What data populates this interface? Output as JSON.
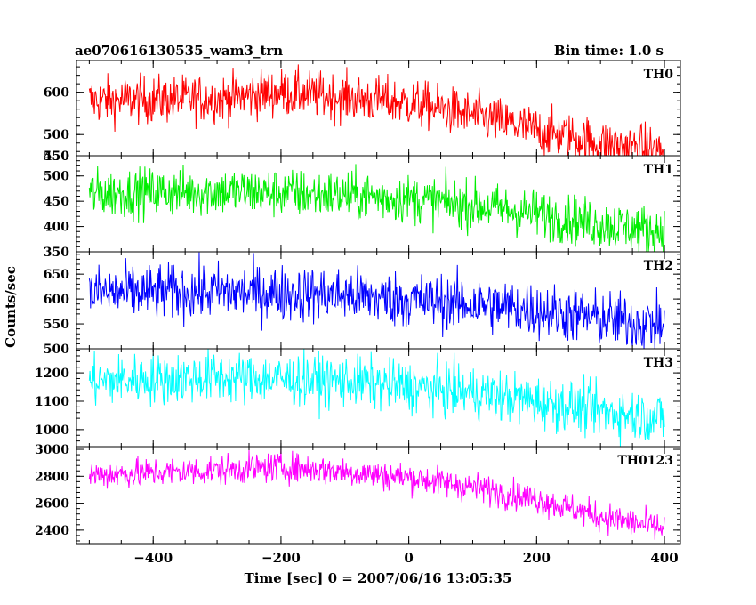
{
  "title": "ae070616130535_wam3_trn",
  "bin_time_label": "Bin time: 1.0 s",
  "chart_data": {
    "type": "line",
    "xlabel": "Time [sec] 0 = 2007/06/16 13:05:35",
    "ylabel": "Counts/sec",
    "xlim": [
      -520,
      425
    ],
    "x_ticks": [
      -400,
      -200,
      0,
      200,
      400
    ],
    "x_start": -500,
    "x_end": 400,
    "x_step": 1.0,
    "grid": false,
    "panels": [
      {
        "name": "TH0",
        "color": "#ff0000",
        "ylim": [
          450,
          675
        ],
        "y_ticks": [
          500,
          600
        ],
        "y_tick_labels": [
          "500",
          "600"
        ],
        "extra_tick_label": "450",
        "trend": [
          [
            -500,
            580
          ],
          [
            -300,
            585
          ],
          [
            -200,
            600
          ],
          [
            0,
            575
          ],
          [
            100,
            545
          ],
          [
            200,
            510
          ],
          [
            300,
            480
          ],
          [
            400,
            460
          ]
        ],
        "noise": 28
      },
      {
        "name": "TH1",
        "color": "#00ee00",
        "ylim": [
          350,
          540
        ],
        "y_ticks": [
          350,
          400,
          450,
          500
        ],
        "y_tick_labels": [
          "350",
          "400",
          "450",
          "500"
        ],
        "extra_tick_label": "550",
        "trend": [
          [
            -500,
            465
          ],
          [
            -300,
            470
          ],
          [
            -100,
            462
          ],
          [
            0,
            455
          ],
          [
            100,
            442
          ],
          [
            200,
            425
          ],
          [
            300,
            405
          ],
          [
            400,
            390
          ]
        ],
        "noise": 24
      },
      {
        "name": "TH2",
        "color": "#0000ff",
        "ylim": [
          500,
          695
        ],
        "y_ticks": [
          500,
          550,
          600,
          650
        ],
        "y_tick_labels": [
          "500",
          "550",
          "600",
          "650"
        ],
        "trend": [
          [
            -500,
            612
          ],
          [
            -300,
            615
          ],
          [
            -100,
            608
          ],
          [
            0,
            598
          ],
          [
            100,
            590
          ],
          [
            200,
            578
          ],
          [
            300,
            560
          ],
          [
            400,
            548
          ]
        ],
        "noise": 28
      },
      {
        "name": "TH3",
        "color": "#00ffff",
        "ylim": [
          940,
          1285
        ],
        "y_ticks": [
          1000,
          1100,
          1200
        ],
        "y_tick_labels": [
          "1000",
          "1100",
          "1200"
        ],
        "trend": [
          [
            -500,
            1170
          ],
          [
            -300,
            1185
          ],
          [
            -100,
            1170
          ],
          [
            0,
            1150
          ],
          [
            100,
            1130
          ],
          [
            200,
            1100
          ],
          [
            300,
            1065
          ],
          [
            400,
            1040
          ]
        ],
        "noise": 45
      },
      {
        "name": "TH0123",
        "color": "#ff00ff",
        "ylim": [
          2300,
          3020
        ],
        "y_ticks": [
          2400,
          2600,
          2800,
          3000
        ],
        "y_tick_labels": [
          "2400",
          "2600",
          "2800",
          "3000"
        ],
        "trend": [
          [
            -500,
            2810
          ],
          [
            -300,
            2845
          ],
          [
            -200,
            2870
          ],
          [
            -100,
            2835
          ],
          [
            0,
            2790
          ],
          [
            100,
            2720
          ],
          [
            200,
            2630
          ],
          [
            300,
            2500
          ],
          [
            400,
            2410
          ]
        ],
        "noise": 55
      }
    ]
  }
}
